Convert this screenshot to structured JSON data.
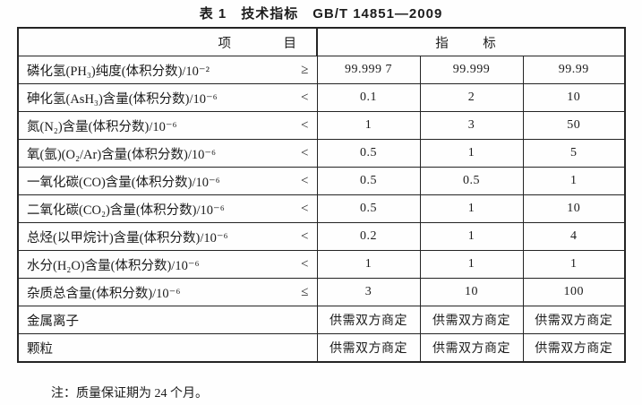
{
  "doc": {
    "title": "表 1　技术指标　GB/T 14851—2009",
    "note": "注：质量保证期为 24 个月。"
  },
  "colors": {
    "background": "#ffffff",
    "text": "#1c1c1c",
    "border": "#242424"
  },
  "table": {
    "header": {
      "item": "项　目",
      "spec": "指　标"
    },
    "rows": [
      {
        "label": "磷化氢(PH₃)纯度(体积分数)/10⁻²",
        "op": "≥",
        "values": [
          "99.999 7",
          "99.999",
          "99.99"
        ]
      },
      {
        "label": "砷化氢(AsH₃)含量(体积分数)/10⁻⁶",
        "op": "<",
        "values": [
          "0.1",
          "2",
          "10"
        ]
      },
      {
        "label": "氮(N₂)含量(体积分数)/10⁻⁶",
        "op": "<",
        "values": [
          "1",
          "3",
          "50"
        ]
      },
      {
        "label": "氧(氩)(O₂/Ar)含量(体积分数)/10⁻⁶",
        "op": "<",
        "values": [
          "0.5",
          "1",
          "5"
        ]
      },
      {
        "label": "一氧化碳(CO)含量(体积分数)/10⁻⁶",
        "op": "<",
        "values": [
          "0.5",
          "0.5",
          "1"
        ]
      },
      {
        "label": "二氧化碳(CO₂)含量(体积分数)/10⁻⁶",
        "op": "<",
        "values": [
          "0.5",
          "1",
          "10"
        ]
      },
      {
        "label": "总烃(以甲烷计)含量(体积分数)/10⁻⁶",
        "op": "<",
        "values": [
          "0.2",
          "1",
          "4"
        ]
      },
      {
        "label": "水分(H₂O)含量(体积分数)/10⁻⁶",
        "op": "<",
        "values": [
          "1",
          "1",
          "1"
        ]
      },
      {
        "label": "杂质总含量(体积分数)/10⁻⁶",
        "op": "≤",
        "values": [
          "3",
          "10",
          "100"
        ]
      },
      {
        "label": "金属离子",
        "op": "",
        "values": [
          "供需双方商定",
          "供需双方商定",
          "供需双方商定"
        ]
      },
      {
        "label": "颗粒",
        "op": "",
        "values": [
          "供需双方商定",
          "供需双方商定",
          "供需双方商定"
        ]
      }
    ]
  }
}
